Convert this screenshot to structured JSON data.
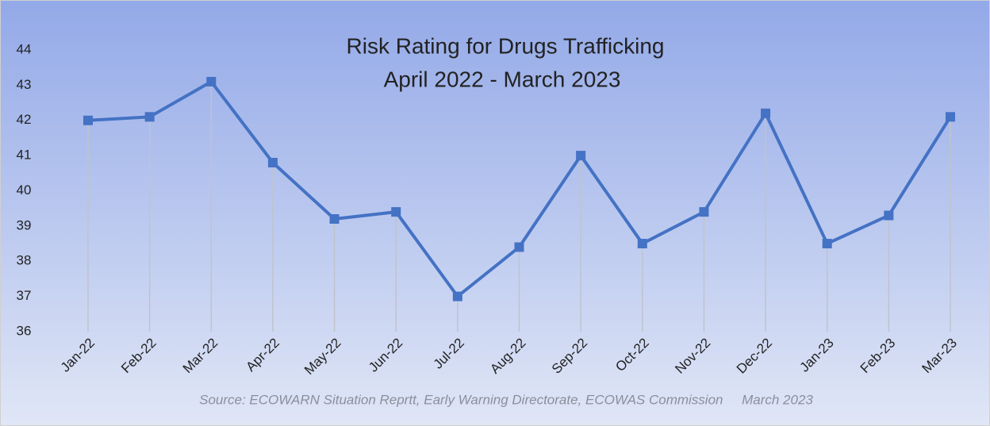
{
  "chart_data": {
    "type": "line",
    "title": "Risk Rating for Drugs Trafficking",
    "subtitle": "April 2022 - March 2023",
    "source": "Source: ECOWARN Situation Reprtt, Early Warning Directorate, ECOWAS Commission     March 2023",
    "categories": [
      "Jan-22",
      "Feb-22",
      "Mar-22",
      "Apr-22",
      "May-22",
      "Jun-22",
      "Jul-22",
      "Aug-22",
      "Sep-22",
      "Oct-22",
      "Nov-22",
      "Dec-22",
      "Jan-23",
      "Feb-23",
      "Mar-23"
    ],
    "values": [
      42,
      42.1,
      43.1,
      40.8,
      39.2,
      39.4,
      37,
      38.4,
      41,
      38.5,
      39.4,
      42.2,
      38.5,
      39.3,
      42.1
    ],
    "color": "#4472c4",
    "ylim": [
      36,
      44
    ],
    "yticks": [
      36,
      37,
      38,
      39,
      40,
      41,
      42,
      43,
      44
    ],
    "drop_lines": true
  }
}
